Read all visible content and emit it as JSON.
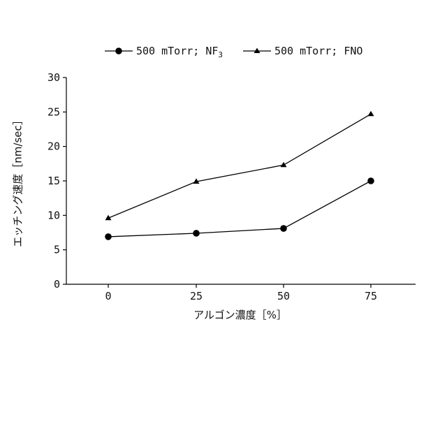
{
  "chart_data": {
    "type": "line",
    "title": "",
    "xlabel": "アルゴン濃度［%］",
    "ylabel": "エッチング速度［nm/sec］",
    "categories": [
      "0",
      "25",
      "50",
      "75"
    ],
    "x": [
      0,
      25,
      50,
      75
    ],
    "ylim": [
      0,
      30
    ],
    "yticks": [
      "0",
      "5",
      "10",
      "15",
      "20",
      "25",
      "30"
    ],
    "grid": false,
    "legend_position": "top",
    "series": [
      {
        "name": "500 mTorr; NF3",
        "label_main": "500 mTorr; NF",
        "label_sub": "3",
        "marker": "circle",
        "values": [
          6.9,
          7.4,
          8.1,
          15.0
        ]
      },
      {
        "name": "500 mTorr; FNO",
        "label_main": "500 mTorr; FNO",
        "label_sub": "",
        "marker": "triangle",
        "values": [
          9.6,
          14.9,
          17.3,
          24.7
        ]
      }
    ],
    "colors": {
      "line": "#000000",
      "text": "#111111"
    }
  }
}
